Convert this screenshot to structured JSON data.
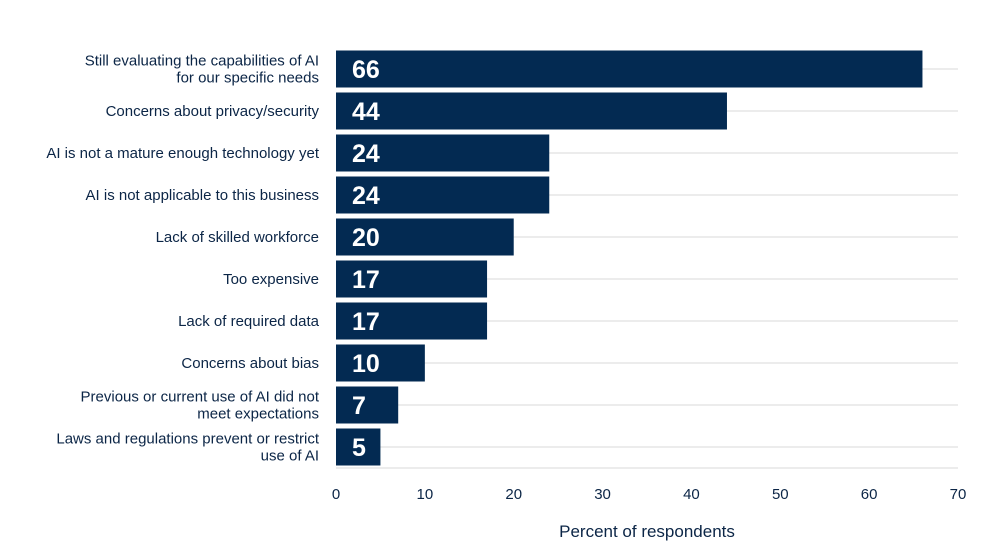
{
  "chart_data": {
    "type": "bar",
    "orientation": "horizontal",
    "categories": [
      [
        "Still evaluating the capabilities of AI",
        "for our specific needs"
      ],
      [
        "Concerns about privacy/security"
      ],
      [
        "AI is not a mature enough technology yet"
      ],
      [
        "AI is not applicable to this business"
      ],
      [
        "Lack of skilled workforce"
      ],
      [
        "Too expensive"
      ],
      [
        "Lack of required data"
      ],
      [
        "Concerns about bias"
      ],
      [
        "Previous or current use of AI did not",
        "meet expectations"
      ],
      [
        "Laws and regulations prevent or restrict",
        "use of AI"
      ]
    ],
    "values": [
      66,
      44,
      24,
      24,
      20,
      17,
      17,
      10,
      7,
      5
    ],
    "xlabel": "Percent of respondents",
    "ylabel": "",
    "xlim": [
      0,
      70
    ],
    "xticks": [
      0,
      10,
      20,
      30,
      40,
      50,
      60,
      70
    ],
    "grid": true,
    "colors": {
      "bar": "#032a52",
      "text": "#0b2546",
      "grid": "#d9d9d9",
      "value_label": "#ffffff"
    }
  }
}
